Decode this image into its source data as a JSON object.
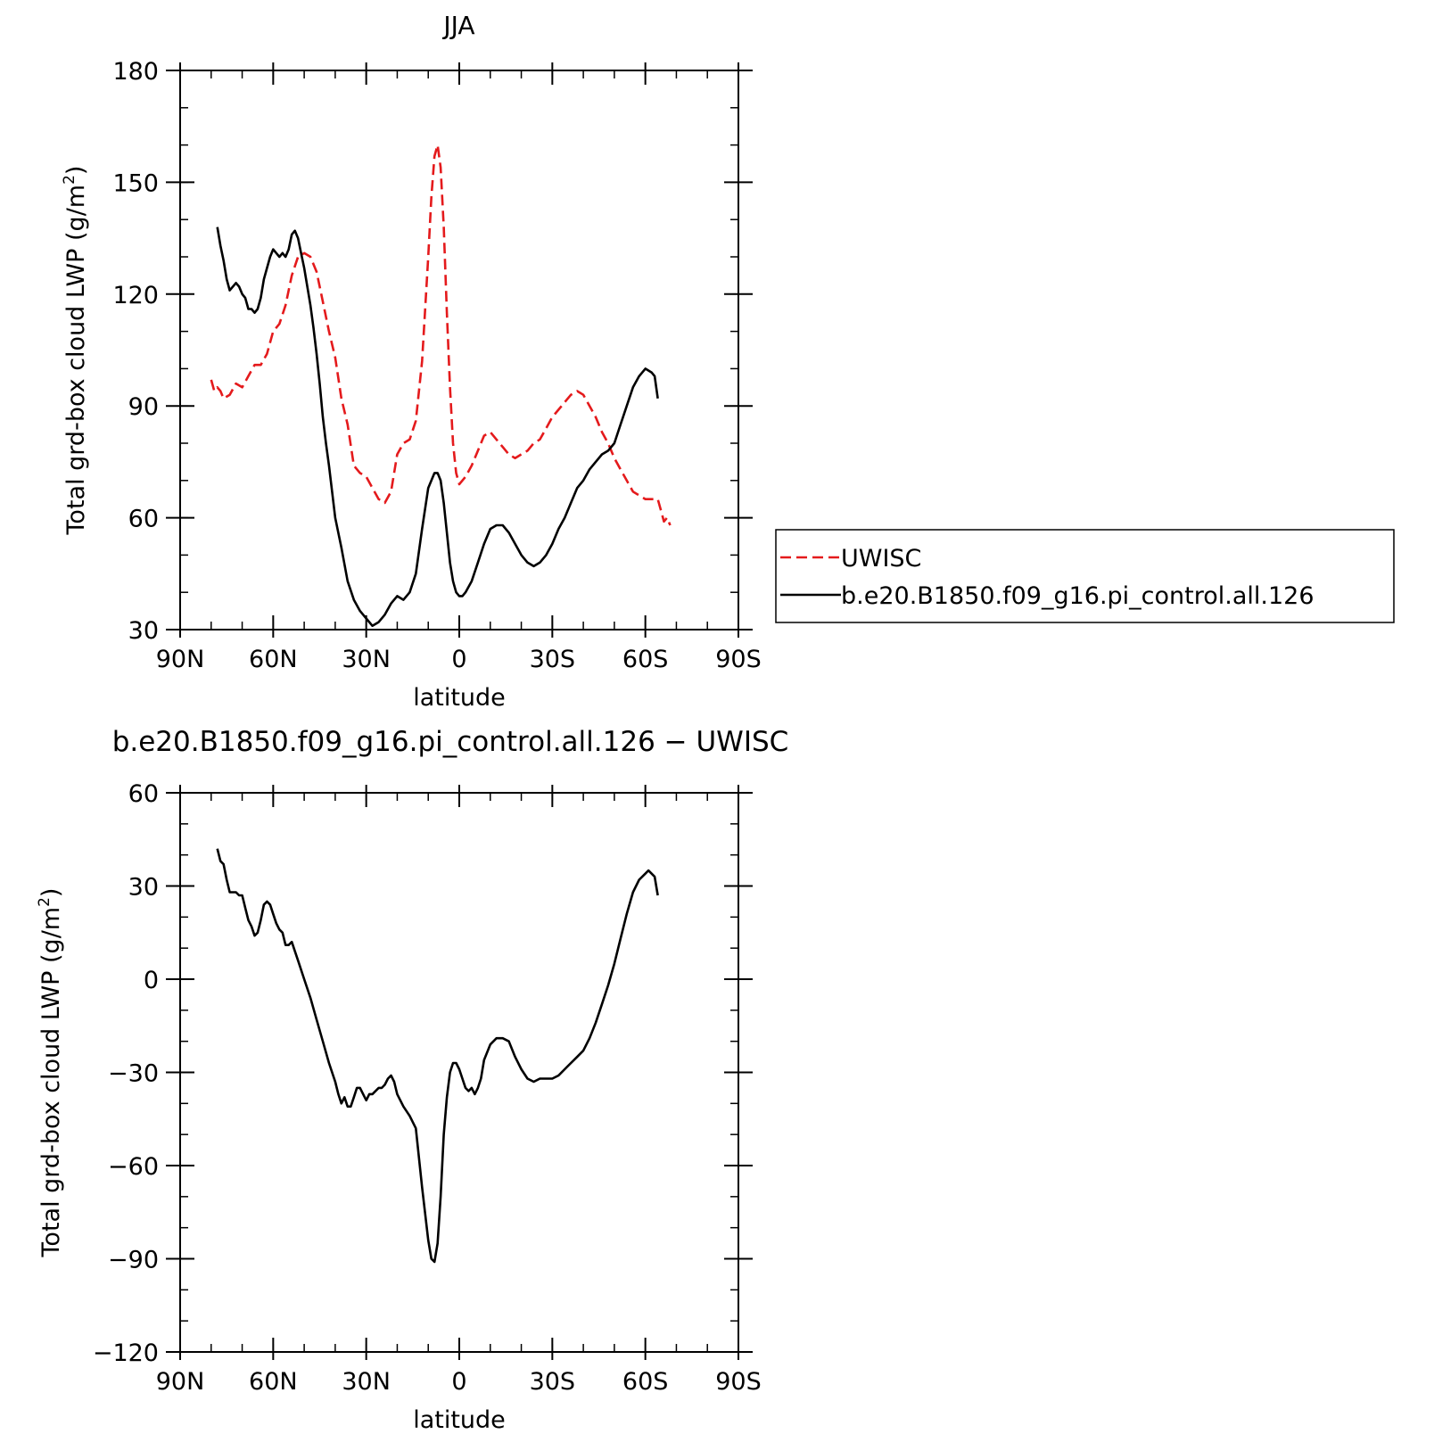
{
  "chart_data": [
    {
      "type": "line",
      "title": "JJA",
      "xlabel": "latitude",
      "ylabel": "Total grd-box cloud LWP (g/m²)",
      "ylabel_main": "Total grd-box cloud LWP (g/m",
      "ylabel_sup": "2",
      "ylabel_close": ")",
      "xlim": [
        -90,
        90
      ],
      "ylim": [
        30,
        180
      ],
      "xticks": [
        -90,
        -60,
        -30,
        0,
        30,
        60,
        90
      ],
      "xtick_labels": [
        "90N",
        "60N",
        "30N",
        "0",
        "30S",
        "60S",
        "90S"
      ],
      "yticks": [
        30,
        60,
        90,
        120,
        150,
        180
      ],
      "ytick_labels": [
        "30",
        "60",
        "90",
        "120",
        "150",
        "180"
      ],
      "grid": false,
      "legend": "outside-right",
      "series": [
        {
          "name": "UWISC",
          "color": "#e41a1c",
          "dash": "dashed",
          "x": [
            -80,
            -79,
            -78,
            -77,
            -76,
            -74,
            -72,
            -70,
            -68,
            -66,
            -64,
            -62,
            -60,
            -58,
            -56,
            -54,
            -52,
            -50,
            -48,
            -46,
            -44,
            -42,
            -40,
            -38,
            -36,
            -34,
            -32,
            -30,
            -28,
            -26,
            -24,
            -22,
            -20,
            -18,
            -16,
            -14,
            -12,
            -10,
            -9,
            -8,
            -7,
            -6,
            -5,
            -4,
            -3,
            -2,
            -1,
            0,
            1,
            2,
            4,
            6,
            8,
            10,
            12,
            14,
            16,
            18,
            20,
            22,
            24,
            26,
            28,
            30,
            32,
            34,
            36,
            38,
            40,
            42,
            44,
            46,
            48,
            50,
            52,
            54,
            56,
            58,
            60,
            62,
            64,
            65,
            66,
            67,
            68
          ],
          "y": [
            97,
            94,
            95,
            94,
            92,
            93,
            96,
            95,
            98,
            101,
            101,
            104,
            110,
            112,
            117,
            125,
            130,
            131,
            130,
            126,
            118,
            110,
            103,
            92,
            85,
            74,
            72,
            71,
            68,
            65,
            64,
            67,
            77,
            80,
            81,
            86,
            102,
            130,
            146,
            157,
            160,
            154,
            138,
            115,
            95,
            80,
            72,
            69,
            70,
            71,
            74,
            78,
            82,
            83,
            81,
            79,
            77,
            76,
            77,
            78,
            80,
            81,
            84,
            87,
            89,
            91,
            93,
            94,
            93,
            90,
            87,
            83,
            80,
            76,
            73,
            70,
            67,
            66,
            65,
            65,
            65,
            62,
            59,
            60,
            58
          ]
        },
        {
          "name": "b.e20.B1850.f09_g16.pi_control.all.126",
          "color": "#000000",
          "dash": "solid",
          "x": [
            -78,
            -77,
            -76,
            -75,
            -74,
            -73,
            -72,
            -71,
            -70,
            -69,
            -68,
            -67,
            -66,
            -65,
            -64,
            -63,
            -62,
            -61,
            -60,
            -59,
            -58,
            -57,
            -56,
            -55,
            -54,
            -53,
            -52,
            -51,
            -50,
            -49,
            -48,
            -47,
            -46,
            -45,
            -44,
            -43,
            -42,
            -40,
            -38,
            -36,
            -34,
            -32,
            -30,
            -28,
            -26,
            -24,
            -22,
            -20,
            -18,
            -16,
            -14,
            -12,
            -10,
            -8,
            -7,
            -6,
            -5,
            -4,
            -3,
            -2,
            -1,
            0,
            1,
            2,
            4,
            6,
            8,
            10,
            12,
            14,
            16,
            18,
            20,
            22,
            24,
            26,
            28,
            30,
            32,
            34,
            36,
            38,
            40,
            42,
            44,
            46,
            48,
            50,
            52,
            54,
            56,
            58,
            60,
            62,
            63,
            64
          ],
          "y": [
            138,
            133,
            129,
            124,
            121,
            122,
            123,
            122,
            120,
            119,
            116,
            116,
            115,
            116,
            119,
            124,
            127,
            130,
            132,
            131,
            130,
            131,
            130,
            132,
            136,
            137,
            135,
            131,
            127,
            122,
            117,
            111,
            104,
            96,
            87,
            80,
            74,
            60,
            52,
            43,
            38,
            35,
            33,
            31,
            32,
            34,
            37,
            39,
            38,
            40,
            45,
            57,
            68,
            72,
            72,
            70,
            64,
            56,
            48,
            43,
            40,
            39,
            39,
            40,
            43,
            48,
            53,
            57,
            58,
            58,
            56,
            53,
            50,
            48,
            47,
            48,
            50,
            53,
            57,
            60,
            64,
            68,
            70,
            73,
            75,
            77,
            78,
            80,
            85,
            90,
            95,
            98,
            100,
            99,
            98,
            92
          ]
        }
      ]
    },
    {
      "type": "line",
      "title": "b.e20.B1850.f09_g16.pi_control.all.126 − UWISC",
      "xlabel": "latitude",
      "ylabel": "Total grd-box cloud LWP (g/m²)",
      "ylabel_main": "Total grd-box cloud LWP (g/m",
      "ylabel_sup": "2",
      "ylabel_close": ")",
      "xlim": [
        -90,
        90
      ],
      "ylim": [
        -120,
        60
      ],
      "xticks": [
        -90,
        -60,
        -30,
        0,
        30,
        60,
        90
      ],
      "xtick_labels": [
        "90N",
        "60N",
        "30N",
        "0",
        "30S",
        "60S",
        "90S"
      ],
      "yticks": [
        -120,
        -90,
        -60,
        -30,
        0,
        30,
        60
      ],
      "ytick_labels": [
        "−120",
        "−90",
        "−60",
        "−30",
        "0",
        "30",
        "60"
      ],
      "grid": false,
      "series": [
        {
          "color": "#000000",
          "dash": "solid",
          "x": [
            -78,
            -77,
            -76,
            -75,
            -74,
            -73,
            -72,
            -71,
            -70,
            -69,
            -68,
            -67,
            -66,
            -65,
            -64,
            -63,
            -62,
            -61,
            -60,
            -59,
            -58,
            -57,
            -56,
            -55,
            -54,
            -53,
            -52,
            -50,
            -48,
            -46,
            -44,
            -42,
            -40,
            -39,
            -38,
            -37,
            -36,
            -35,
            -34,
            -33,
            -32,
            -31,
            -30,
            -29,
            -28,
            -27,
            -26,
            -25,
            -24,
            -23,
            -22,
            -21,
            -20,
            -18,
            -16,
            -14,
            -12,
            -10,
            -9,
            -8,
            -7,
            -6,
            -5,
            -4,
            -3,
            -2,
            -1,
            0,
            1,
            2,
            3,
            4,
            5,
            6,
            7,
            8,
            10,
            12,
            14,
            16,
            18,
            20,
            22,
            24,
            26,
            28,
            30,
            32,
            34,
            36,
            38,
            40,
            42,
            44,
            46,
            48,
            50,
            52,
            54,
            56,
            58,
            60,
            61,
            62,
            63,
            64
          ],
          "y": [
            42,
            38,
            37,
            32,
            28,
            28,
            28,
            27,
            27,
            23,
            19,
            17,
            14,
            15,
            19,
            24,
            25,
            24,
            21,
            18,
            16,
            15,
            11,
            11,
            12,
            9,
            6,
            0,
            -6,
            -13,
            -20,
            -27,
            -33,
            -37,
            -40,
            -38,
            -41,
            -41,
            -38,
            -35,
            -35,
            -37,
            -39,
            -37,
            -37,
            -36,
            -35,
            -35,
            -34,
            -32,
            -31,
            -33,
            -37,
            -41,
            -44,
            -48,
            -67,
            -84,
            -90,
            -91,
            -85,
            -70,
            -50,
            -38,
            -30,
            -27,
            -27,
            -29,
            -32,
            -35,
            -36,
            -35,
            -37,
            -35,
            -32,
            -26,
            -21,
            -19,
            -19,
            -20,
            -25,
            -29,
            -32,
            -33,
            -32,
            -32,
            -32,
            -31,
            -29,
            -27,
            -25,
            -23,
            -19,
            -14,
            -8,
            -2,
            5,
            13,
            21,
            28,
            32,
            34,
            35,
            34,
            33,
            27
          ]
        }
      ]
    }
  ]
}
